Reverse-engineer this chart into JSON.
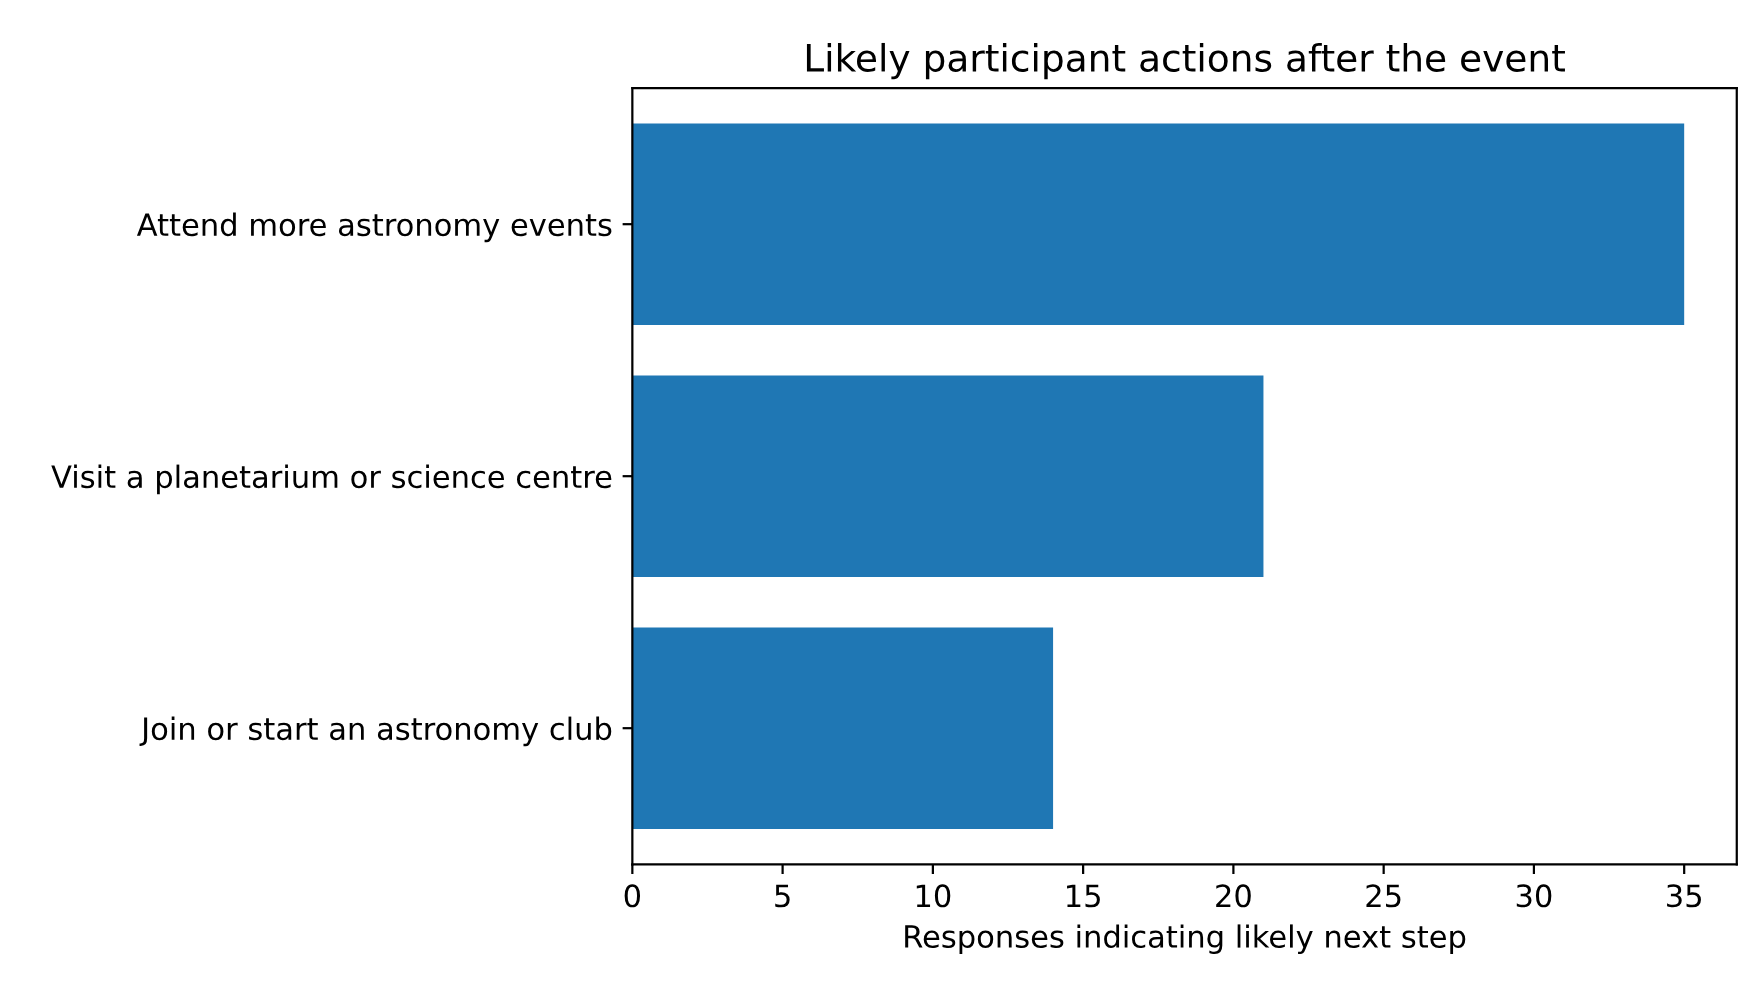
{
  "chart_data": {
    "type": "bar",
    "orientation": "horizontal",
    "title": "Likely participant actions after the event",
    "xlabel": "Responses indicating likely next step",
    "categories": [
      "Attend more astronomy events",
      "Visit a planetarium or science centre",
      "Join or start an astronomy club"
    ],
    "values": [
      35,
      21,
      14
    ],
    "color": "#1f77b4",
    "xlim": [
      0,
      36.75
    ],
    "xticks": [
      0,
      5,
      10,
      15,
      20,
      25,
      30,
      35
    ],
    "grid": false,
    "legend": false
  }
}
